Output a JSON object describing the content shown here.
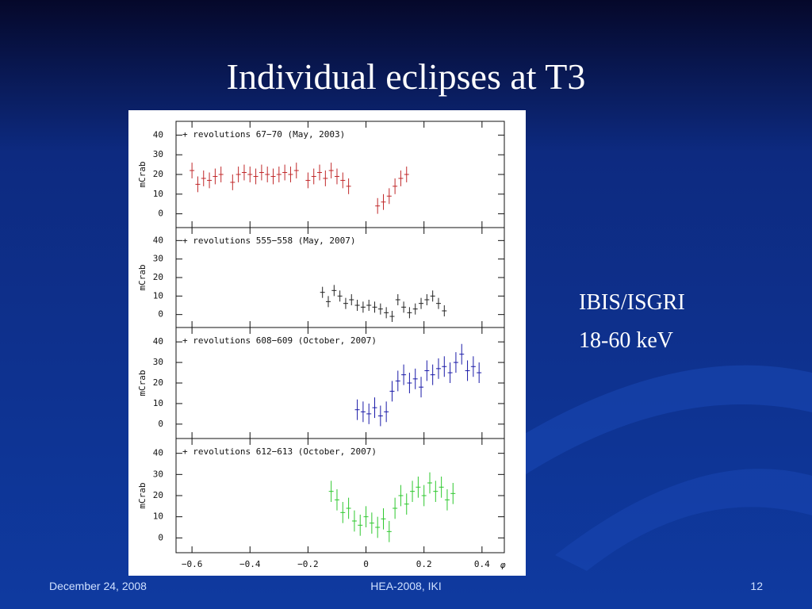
{
  "title": "Individual eclipses at T3",
  "side_text": [
    "IBIS/ISGRI",
    "18-60 keV"
  ],
  "footer": {
    "date": "December 24, 2008",
    "event": "HEA-2008, IKI",
    "page": "12"
  },
  "chart_data": [
    {
      "type": "scatter",
      "annotation": "+ revolutions 67−70 (May, 2003)",
      "ylabel": "mCrab",
      "xlim": [
        -0.655,
        0.477
      ],
      "ylim": [
        -7,
        47
      ],
      "yticks": [
        0,
        10,
        20,
        30,
        40
      ],
      "series": [
        {
          "color": "#c0282a",
          "x": [
            -0.6,
            -0.58,
            -0.56,
            -0.54,
            -0.52,
            -0.5,
            -0.46,
            -0.44,
            -0.42,
            -0.4,
            -0.38,
            -0.36,
            -0.34,
            -0.32,
            -0.3,
            -0.28,
            -0.26,
            -0.24,
            -0.2,
            -0.18,
            -0.16,
            -0.14,
            -0.12,
            -0.1,
            -0.08,
            -0.06,
            0.04,
            0.06,
            0.08,
            0.1,
            0.12,
            0.14
          ],
          "values": [
            22,
            15,
            18,
            17,
            19,
            20,
            16,
            20,
            21,
            20,
            19,
            21,
            20,
            19,
            20,
            21,
            20,
            22,
            17,
            19,
            21,
            18,
            22,
            19,
            17,
            14,
            4,
            6,
            9,
            14,
            18,
            20
          ],
          "errors": [
            4,
            4,
            4,
            4,
            4,
            4,
            4,
            4,
            4,
            4,
            4,
            4,
            4,
            4,
            4,
            4,
            4,
            4,
            4,
            4,
            4,
            4,
            4,
            4,
            4,
            4,
            4,
            4,
            4,
            4,
            4,
            4
          ]
        }
      ]
    },
    {
      "type": "scatter",
      "annotation": "+ revolutions 555−558 (May, 2007)",
      "ylabel": "mCrab",
      "xlim": [
        -0.655,
        0.477
      ],
      "ylim": [
        -7,
        47
      ],
      "yticks": [
        0,
        10,
        20,
        30,
        40
      ],
      "series": [
        {
          "color": "#222222",
          "x": [
            -0.15,
            -0.13,
            -0.11,
            -0.09,
            -0.07,
            -0.05,
            -0.03,
            -0.01,
            0.01,
            0.03,
            0.05,
            0.07,
            0.09,
            0.11,
            0.13,
            0.15,
            0.17,
            0.19,
            0.21,
            0.23,
            0.25,
            0.27
          ],
          "values": [
            12,
            7,
            13,
            10,
            6,
            8,
            5,
            4,
            5,
            4,
            3,
            1,
            -1,
            8,
            4,
            1,
            3,
            6,
            8,
            10,
            6,
            2
          ],
          "errors": [
            3,
            3,
            3,
            3,
            3,
            3,
            3,
            3,
            3,
            3,
            3,
            3,
            3,
            3,
            3,
            3,
            3,
            3,
            3,
            3,
            3,
            3
          ]
        }
      ]
    },
    {
      "type": "scatter",
      "annotation": "+ revolutions 608−609 (October, 2007)",
      "ylabel": "mCrab",
      "xlim": [
        -0.655,
        0.477
      ],
      "ylim": [
        -7,
        47
      ],
      "yticks": [
        0,
        10,
        20,
        30,
        40
      ],
      "series": [
        {
          "color": "#1a1aa8",
          "x": [
            -0.03,
            -0.01,
            0.01,
            0.03,
            0.05,
            0.07,
            0.09,
            0.11,
            0.13,
            0.15,
            0.17,
            0.19,
            0.21,
            0.23,
            0.25,
            0.27,
            0.29,
            0.31,
            0.33,
            0.35,
            0.37,
            0.39
          ],
          "values": [
            7,
            6,
            5,
            8,
            4,
            6,
            16,
            21,
            24,
            20,
            22,
            18,
            26,
            24,
            27,
            28,
            25,
            30,
            34,
            26,
            28,
            25
          ],
          "errors": [
            5,
            5,
            5,
            5,
            5,
            5,
            5,
            5,
            5,
            5,
            5,
            5,
            5,
            5,
            5,
            5,
            5,
            5,
            5,
            5,
            5,
            5
          ]
        }
      ]
    },
    {
      "type": "scatter",
      "annotation": "+ revolutions 612−613 (October, 2007)",
      "ylabel": "mCrab",
      "xlim": [
        -0.655,
        0.477
      ],
      "ylim": [
        -7,
        47
      ],
      "yticks": [
        0,
        10,
        20,
        30,
        40
      ],
      "xlabel": "φ",
      "xticks": [
        {
          "value": -0.6,
          "label": "−0.6"
        },
        {
          "value": -0.4,
          "label": "−0.4"
        },
        {
          "value": -0.2,
          "label": "−0.2"
        },
        0,
        0.2,
        0.4
      ],
      "series": [
        {
          "color": "#2ec82e",
          "x": [
            -0.12,
            -0.1,
            -0.08,
            -0.06,
            -0.04,
            -0.02,
            0,
            0.02,
            0.04,
            0.06,
            0.08,
            0.1,
            0.12,
            0.14,
            0.16,
            0.18,
            0.2,
            0.22,
            0.24,
            0.26,
            0.28,
            0.3
          ],
          "values": [
            22,
            18,
            12,
            14,
            8,
            6,
            10,
            7,
            5,
            9,
            3,
            14,
            20,
            16,
            22,
            24,
            20,
            26,
            22,
            24,
            18,
            21
          ],
          "errors": [
            5,
            5,
            5,
            5,
            5,
            5,
            5,
            5,
            5,
            5,
            5,
            5,
            5,
            5,
            5,
            5,
            5,
            5,
            5,
            5,
            5,
            5
          ]
        }
      ]
    }
  ]
}
